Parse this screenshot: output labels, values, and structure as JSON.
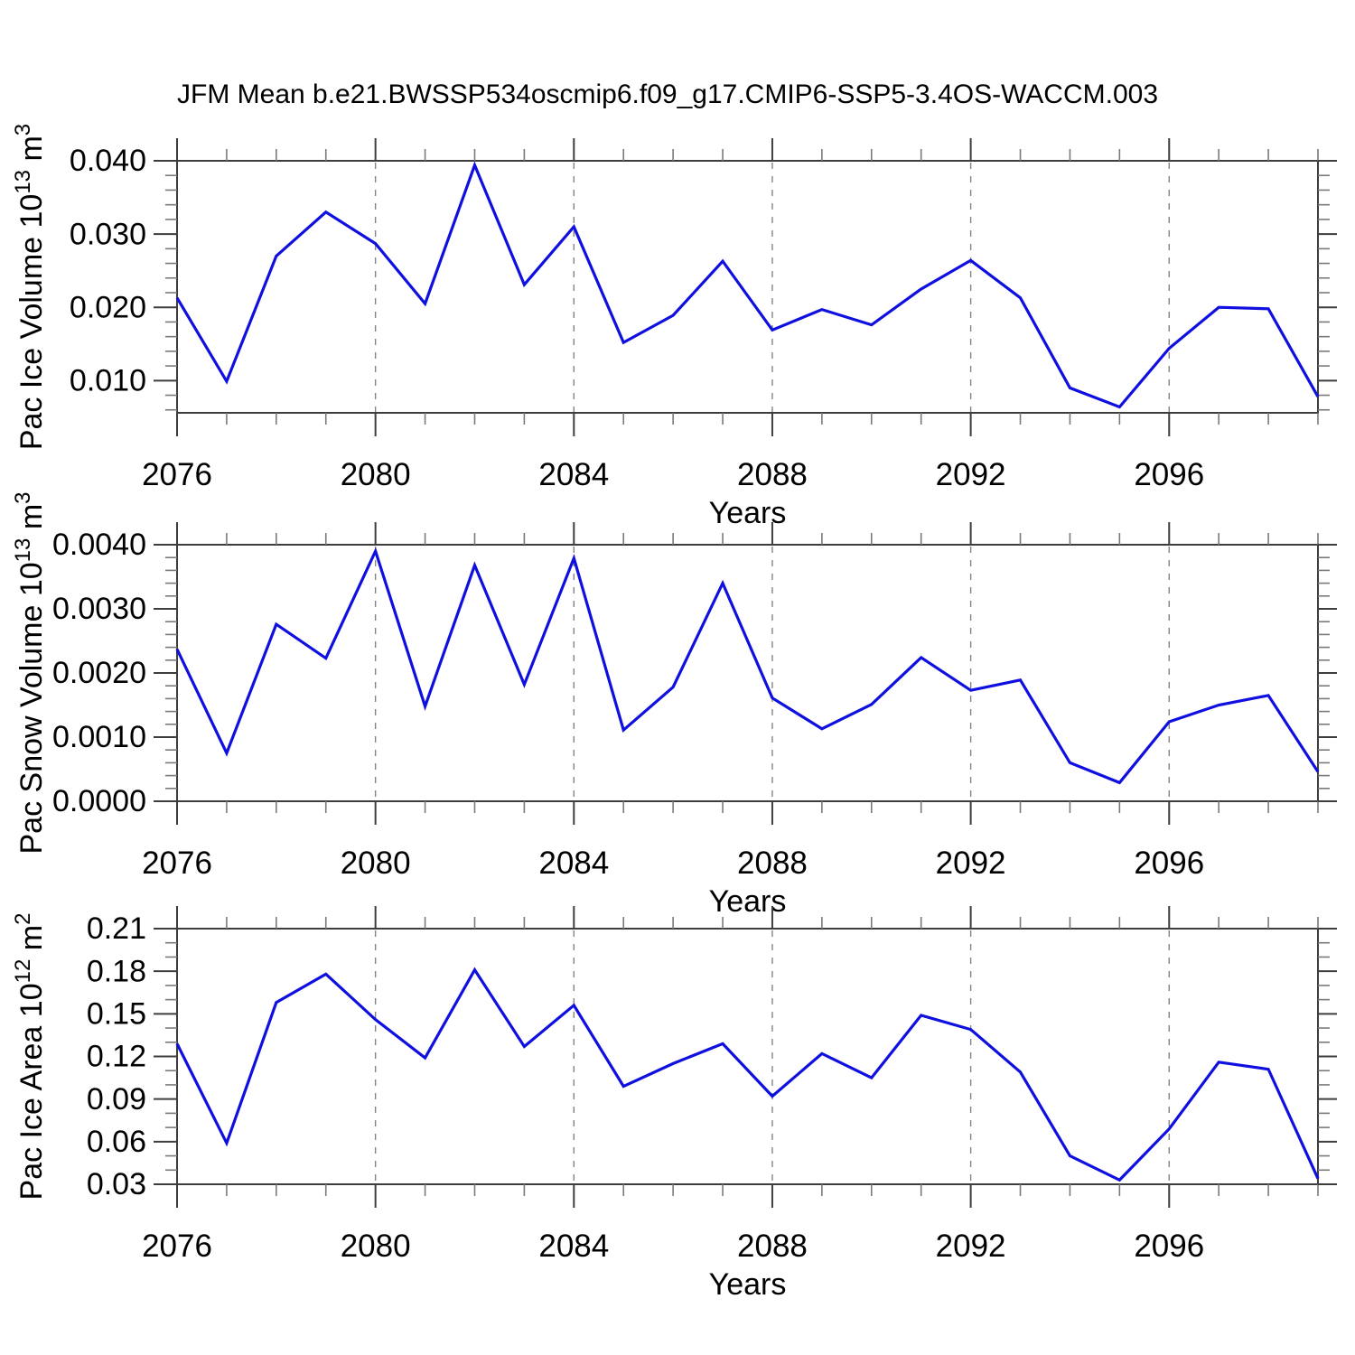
{
  "title": "JFM Mean b.e21.BWSSP534oscmip6.f09_g17.CMIP6-SSP5-3.4OS-WACCM.003",
  "colors": {
    "line": "#0f0fe0",
    "frame": "#3d3d3d",
    "major_tick": "#3d3d3d",
    "minor_tick": "#7a7a7a",
    "grid": "#848484",
    "text": "#000000"
  },
  "chart_data": [
    {
      "type": "line",
      "ylabel_segments": [
        {
          "t": "Pac Ice Volume 10"
        },
        {
          "t": "13",
          "sup": true
        },
        {
          "t": " m"
        },
        {
          "t": "3",
          "sup": true
        }
      ],
      "ylabel_plain": "Pac Ice Volume 10^13 m^3",
      "xlabel": "Years",
      "xlim": [
        2076,
        2099
      ],
      "ylim": [
        0.0056,
        0.04
      ],
      "x_minor_step": 1,
      "y_minor_step": 0.002,
      "grid_x": [
        2080,
        2084,
        2088,
        2092,
        2096
      ],
      "xticks": [
        {
          "v": 2076,
          "label": "2076"
        },
        {
          "v": 2080,
          "label": "2080"
        },
        {
          "v": 2084,
          "label": "2084"
        },
        {
          "v": 2088,
          "label": "2088"
        },
        {
          "v": 2092,
          "label": "2092"
        },
        {
          "v": 2096,
          "label": "2096"
        }
      ],
      "yticks": [
        {
          "v": 0.01,
          "label": "0.010"
        },
        {
          "v": 0.02,
          "label": "0.020"
        },
        {
          "v": 0.03,
          "label": "0.030"
        },
        {
          "v": 0.04,
          "label": "0.040"
        }
      ],
      "x": [
        2076,
        2077,
        2078,
        2079,
        2080,
        2081,
        2082,
        2083,
        2084,
        2085,
        2086,
        2087,
        2088,
        2089,
        2090,
        2091,
        2092,
        2093,
        2094,
        2095,
        2096,
        2097,
        2098,
        2099
      ],
      "values": [
        0.0213,
        0.0099,
        0.027,
        0.033,
        0.0287,
        0.0205,
        0.0394,
        0.0231,
        0.031,
        0.0152,
        0.0189,
        0.0263,
        0.0169,
        0.0197,
        0.0176,
        0.0225,
        0.0264,
        0.0213,
        0.009,
        0.0064,
        0.0144,
        0.02,
        0.0198,
        0.0078
      ]
    },
    {
      "type": "line",
      "ylabel_segments": [
        {
          "t": "Pac Snow Volume 10"
        },
        {
          "t": "13",
          "sup": true
        },
        {
          "t": " m"
        },
        {
          "t": "3",
          "sup": true
        }
      ],
      "ylabel_plain": "Pac Snow Volume 10^13 m^3",
      "xlabel": "Years",
      "xlim": [
        2076,
        2099
      ],
      "ylim": [
        0.0,
        0.004
      ],
      "x_minor_step": 1,
      "y_minor_step": 0.0002,
      "grid_x": [
        2080,
        2084,
        2088,
        2092,
        2096
      ],
      "xticks": [
        {
          "v": 2076,
          "label": "2076"
        },
        {
          "v": 2080,
          "label": "2080"
        },
        {
          "v": 2084,
          "label": "2084"
        },
        {
          "v": 2088,
          "label": "2088"
        },
        {
          "v": 2092,
          "label": "2092"
        },
        {
          "v": 2096,
          "label": "2096"
        }
      ],
      "yticks": [
        {
          "v": 0.0,
          "label": "0.0000"
        },
        {
          "v": 0.001,
          "label": "0.0010"
        },
        {
          "v": 0.002,
          "label": "0.0020"
        },
        {
          "v": 0.003,
          "label": "0.0030"
        },
        {
          "v": 0.004,
          "label": "0.0040"
        }
      ],
      "x": [
        2076,
        2077,
        2078,
        2079,
        2080,
        2081,
        2082,
        2083,
        2084,
        2085,
        2086,
        2087,
        2088,
        2089,
        2090,
        2091,
        2092,
        2093,
        2094,
        2095,
        2096,
        2097,
        2098,
        2099
      ],
      "values": [
        0.00237,
        0.00075,
        0.00276,
        0.00223,
        0.0039,
        0.00148,
        0.00368,
        0.00182,
        0.00379,
        0.00111,
        0.00178,
        0.0034,
        0.00161,
        0.00113,
        0.00151,
        0.00224,
        0.00173,
        0.00189,
        0.0006,
        0.00029,
        0.00124,
        0.0015,
        0.00165,
        0.00046
      ]
    },
    {
      "type": "line",
      "ylabel_segments": [
        {
          "t": "Pac Ice Area 10"
        },
        {
          "t": "12",
          "sup": true
        },
        {
          "t": " m"
        },
        {
          "t": "2",
          "sup": true
        }
      ],
      "ylabel_plain": "Pac Ice Area 10^12 m^2",
      "xlabel": "Years",
      "xlim": [
        2076,
        2099
      ],
      "ylim": [
        0.03,
        0.21
      ],
      "x_minor_step": 1,
      "y_minor_step": 0.01,
      "grid_x": [
        2080,
        2084,
        2088,
        2092,
        2096
      ],
      "xticks": [
        {
          "v": 2076,
          "label": "2076"
        },
        {
          "v": 2080,
          "label": "2080"
        },
        {
          "v": 2084,
          "label": "2084"
        },
        {
          "v": 2088,
          "label": "2088"
        },
        {
          "v": 2092,
          "label": "2092"
        },
        {
          "v": 2096,
          "label": "2096"
        }
      ],
      "yticks": [
        {
          "v": 0.03,
          "label": "0.03"
        },
        {
          "v": 0.06,
          "label": "0.06"
        },
        {
          "v": 0.09,
          "label": "0.09"
        },
        {
          "v": 0.12,
          "label": "0.12"
        },
        {
          "v": 0.15,
          "label": "0.15"
        },
        {
          "v": 0.18,
          "label": "0.18"
        },
        {
          "v": 0.21,
          "label": "0.21"
        }
      ],
      "x": [
        2076,
        2077,
        2078,
        2079,
        2080,
        2081,
        2082,
        2083,
        2084,
        2085,
        2086,
        2087,
        2088,
        2089,
        2090,
        2091,
        2092,
        2093,
        2094,
        2095,
        2096,
        2097,
        2098,
        2099
      ],
      "values": [
        0.129,
        0.059,
        0.158,
        0.178,
        0.146,
        0.119,
        0.181,
        0.127,
        0.156,
        0.099,
        0.115,
        0.129,
        0.092,
        0.122,
        0.105,
        0.149,
        0.139,
        0.109,
        0.05,
        0.033,
        0.069,
        0.116,
        0.111,
        0.034
      ]
    }
  ]
}
